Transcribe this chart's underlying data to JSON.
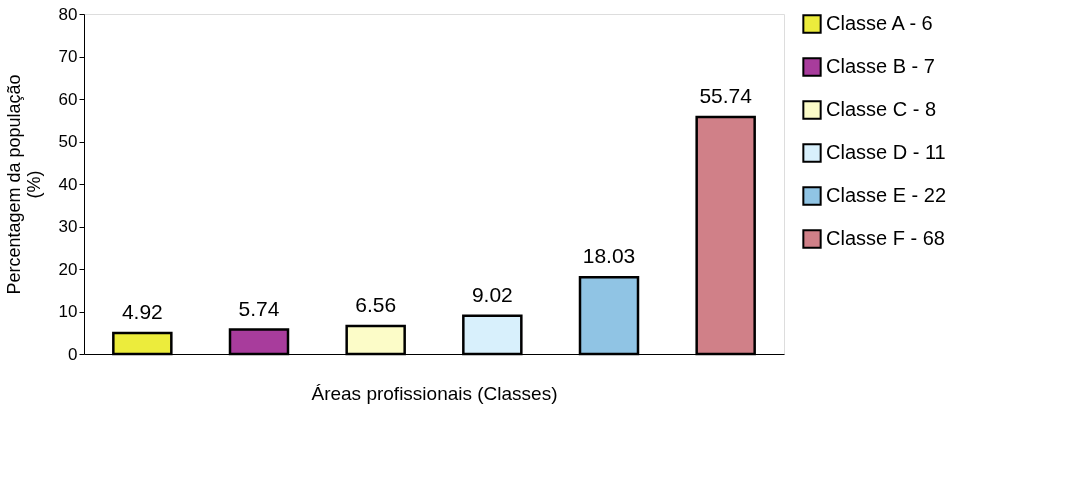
{
  "chart_data": {
    "type": "bar",
    "xlabel": "Áreas profissionais (Classes)",
    "ylabel": "Percentagem da população (%)",
    "categories": [
      null,
      null,
      null,
      null,
      null,
      null
    ],
    "series": [
      {
        "name": "Classe A - 6",
        "color": "#ecec3c",
        "values": [
          4.92,
          null,
          null,
          null,
          null,
          null
        ]
      },
      {
        "name": "Classe B - 7",
        "color": "#a83c9c",
        "values": [
          null,
          5.74,
          null,
          null,
          null,
          null
        ]
      },
      {
        "name": "Classe C - 8",
        "color": "#fcfcc8",
        "values": [
          null,
          null,
          6.56,
          null,
          null,
          null
        ]
      },
      {
        "name": "Classe D - 11",
        "color": "#d8f0fc",
        "values": [
          null,
          null,
          null,
          9.02,
          null,
          null
        ]
      },
      {
        "name": "Classe E - 22",
        "color": "#90c4e4",
        "values": [
          null,
          null,
          null,
          null,
          18.03,
          null
        ]
      },
      {
        "name": "Classe F - 68",
        "color": "#d08088",
        "values": [
          null,
          null,
          null,
          null,
          null,
          55.74
        ]
      }
    ],
    "ylim": [
      0,
      80
    ],
    "yticks": [
      0,
      10,
      20,
      30,
      40,
      50,
      60,
      70,
      80
    ],
    "data_labels": true,
    "legend": "right",
    "grid": false,
    "tick_labels": "y"
  }
}
